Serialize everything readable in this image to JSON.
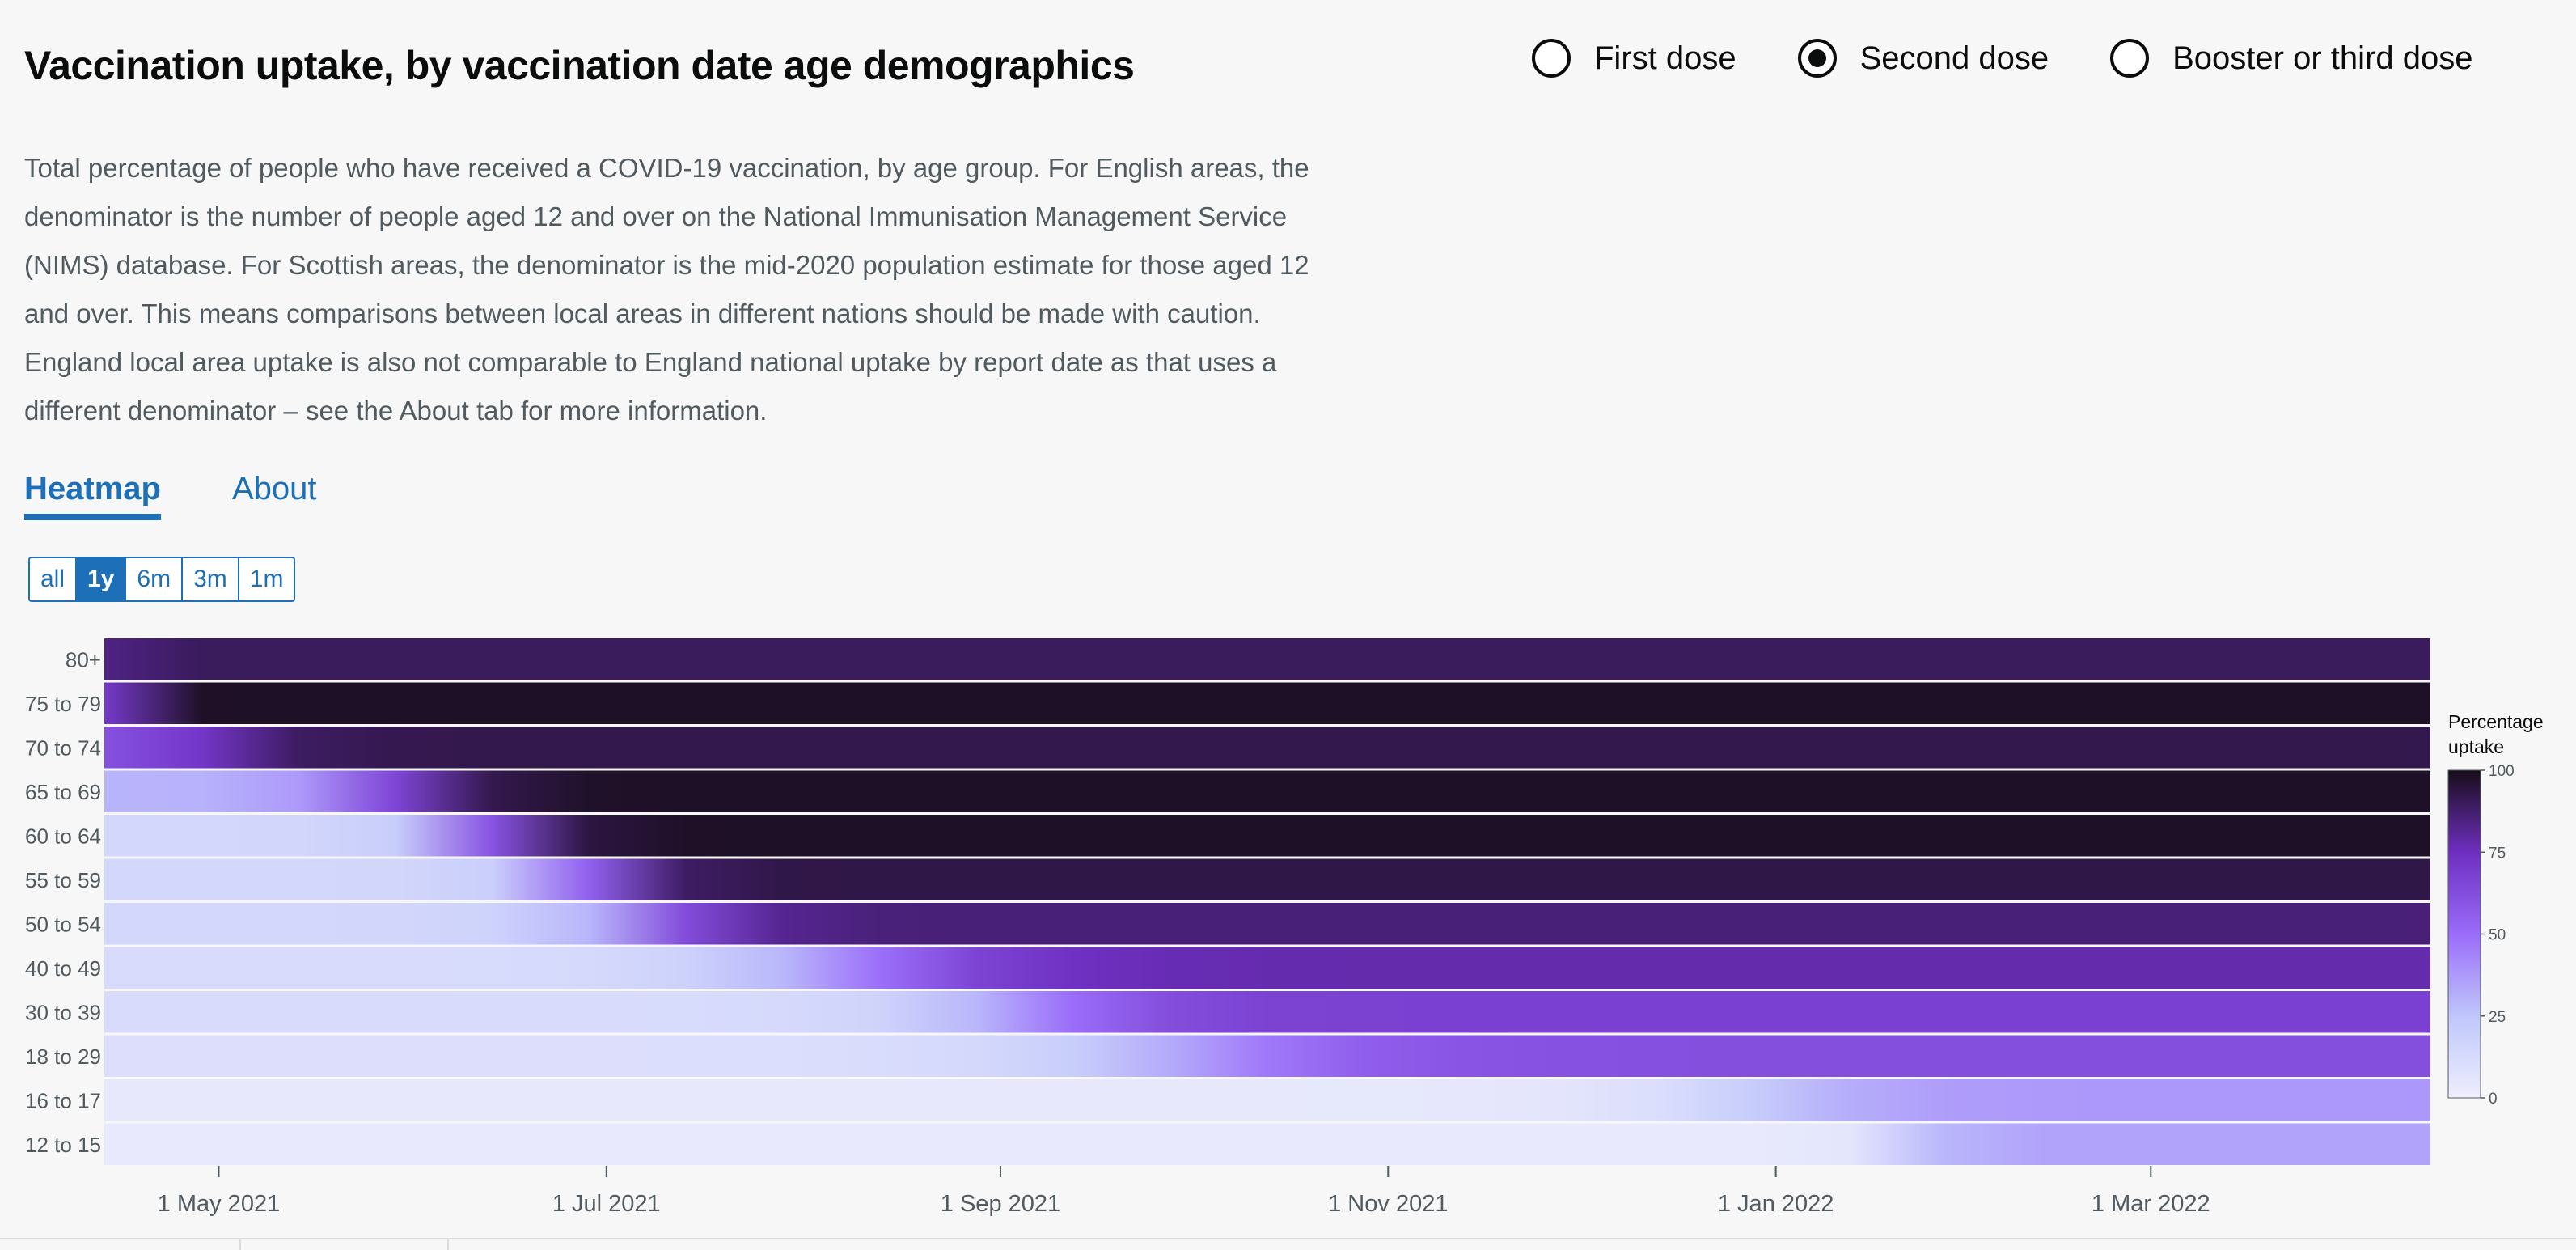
{
  "page": {
    "title": "Vaccination uptake, by vaccination date age demographics",
    "description": "Total percentage of people who have received a COVID-19 vaccination, by age group. For English areas, the denominator is the number of people aged 12 and over on the National Immunisation Management Service (NIMS) database. For Scottish areas, the denominator is the mid-2020 population estimate for those aged 12 and over. This means comparisons between local areas in different nations should be made with caution. England local area uptake is also not comparable to England national uptake by report date as that uses a different denominator – see the About tab for more information."
  },
  "dose_options": [
    {
      "label": "First dose",
      "checked": false
    },
    {
      "label": "Second dose",
      "checked": true
    },
    {
      "label": "Booster or third dose",
      "checked": false
    }
  ],
  "tabs": [
    {
      "label": "Heatmap",
      "active": true
    },
    {
      "label": "About",
      "active": false
    }
  ],
  "range_buttons": [
    {
      "label": "all",
      "active": false
    },
    {
      "label": "1y",
      "active": true
    },
    {
      "label": "6m",
      "active": false
    },
    {
      "label": "3m",
      "active": false
    },
    {
      "label": "1m",
      "active": false
    }
  ],
  "chart_data": {
    "type": "heatmap",
    "x_range": [
      "2021-04-13",
      "2022-04-14"
    ],
    "x_ticks": [
      {
        "date": "2021-05-01",
        "label": "1 May 2021"
      },
      {
        "date": "2021-07-01",
        "label": "1 Jul 2021"
      },
      {
        "date": "2021-09-01",
        "label": "1 Sep 2021"
      },
      {
        "date": "2021-11-01",
        "label": "1 Nov 2021"
      },
      {
        "date": "2022-01-01",
        "label": "1 Jan 2022"
      },
      {
        "date": "2022-03-01",
        "label": "1 Mar 2022"
      }
    ],
    "rows": [
      {
        "label": "80+",
        "start_value": 80,
        "end_value": 90,
        "midpoint": "2021-04-14",
        "width_days": 6
      },
      {
        "label": "75 to 79",
        "start_value": 70,
        "end_value": 98,
        "midpoint": "2021-04-20",
        "width_days": 4
      },
      {
        "label": "70 to 74",
        "start_value": 60,
        "end_value": 92,
        "midpoint": "2021-05-01",
        "width_days": 12
      },
      {
        "label": "65 to 69",
        "start_value": 30,
        "end_value": 98,
        "midpoint": "2021-05-28",
        "width_days": 15
      },
      {
        "label": "60 to 64",
        "start_value": 15,
        "end_value": 98,
        "midpoint": "2021-06-12",
        "width_days": 12
      },
      {
        "label": "55 to 59",
        "start_value": 15,
        "end_value": 93,
        "midpoint": "2021-06-28",
        "width_days": 12
      },
      {
        "label": "50 to 54",
        "start_value": 15,
        "end_value": 86,
        "midpoint": "2021-07-08",
        "width_days": 16
      },
      {
        "label": "40 to 49",
        "start_value": 12,
        "end_value": 78,
        "midpoint": "2021-08-10",
        "width_days": 26
      },
      {
        "label": "30 to 39",
        "start_value": 12,
        "end_value": 68,
        "midpoint": "2021-09-05",
        "width_days": 22
      },
      {
        "label": "18 to 29",
        "start_value": 10,
        "end_value": 62,
        "midpoint": "2021-10-01",
        "width_days": 30
      },
      {
        "label": "16 to 17",
        "start_value": 4,
        "end_value": 38,
        "midpoint": "2021-12-28",
        "width_days": 22
      },
      {
        "label": "12 to 15",
        "start_value": 3,
        "end_value": 35,
        "midpoint": "2022-01-22",
        "width_days": 8
      }
    ],
    "color_scale": {
      "stops": [
        {
          "value": 0,
          "color": "#eeeefc"
        },
        {
          "value": 25,
          "color": "#c0c7fb"
        },
        {
          "value": 50,
          "color": "#9a6cf9"
        },
        {
          "value": 75,
          "color": "#6e2fc1"
        },
        {
          "value": 100,
          "color": "#170d18"
        }
      ]
    },
    "legend": {
      "title": [
        "Percentage",
        "uptake"
      ],
      "ticks": [
        "100",
        "75",
        "50",
        "25",
        "0"
      ]
    }
  }
}
